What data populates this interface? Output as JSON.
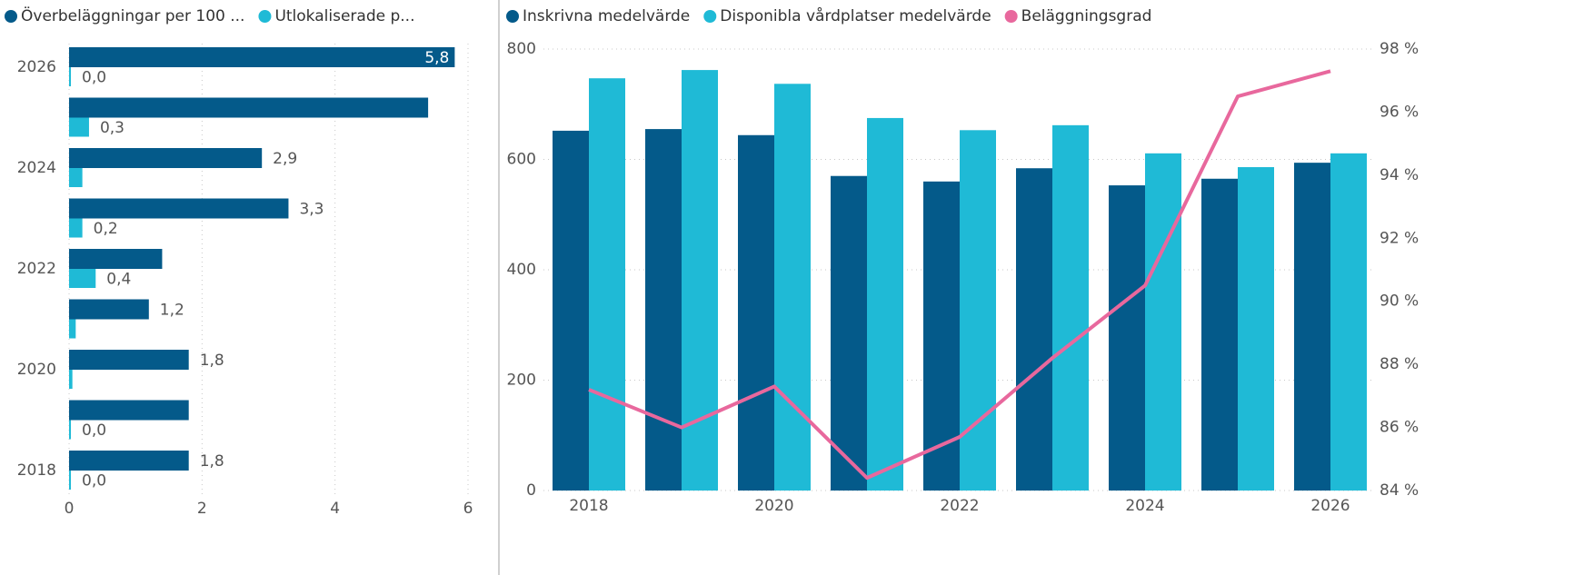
{
  "chart_data": [
    {
      "type": "bar",
      "orientation": "horizontal",
      "categories": [
        "2026",
        null,
        "2024",
        null,
        "2022",
        null,
        "2020",
        null,
        "2018"
      ],
      "series": [
        {
          "name": "Överbeläggningar per 100 ...",
          "color": "#045a8a",
          "values": [
            5.8,
            5.4,
            2.9,
            3.3,
            1.4,
            1.2,
            1.8,
            1.8,
            1.8
          ],
          "value_labels": [
            "5,8",
            null,
            "2,9",
            "3,3",
            null,
            "1,2",
            "1,8",
            null,
            "1,8"
          ]
        },
        {
          "name": "Utlokaliserade p...",
          "color": "#1fbad6",
          "values": [
            0.0,
            0.3,
            0.2,
            0.2,
            0.4,
            0.1,
            0.05,
            0.0,
            0.0
          ],
          "value_labels": [
            "0,0",
            "0,3",
            null,
            "0,2",
            "0,4",
            null,
            null,
            "0,0",
            "0,0"
          ]
        }
      ],
      "xlim": [
        0,
        6
      ],
      "xticks": [
        0,
        2,
        4,
        6
      ],
      "grid": true
    },
    {
      "type": "bar",
      "categories": [
        "2018",
        null,
        "2020",
        null,
        "2022",
        null,
        "2024",
        null,
        "2026"
      ],
      "series": [
        {
          "name": "Inskrivna medelvärde",
          "color": "#045a8a",
          "values": [
            652,
            655,
            644,
            570,
            560,
            584,
            553,
            565,
            594
          ]
        },
        {
          "name": "Disponibla vårdplatser medelvärde",
          "color": "#1fbad6",
          "values": [
            747,
            762,
            737,
            675,
            653,
            662,
            611,
            586,
            611
          ]
        },
        {
          "name": "Beläggningsgrad",
          "color": "#e8689d",
          "type": "line",
          "axis": "y2",
          "values": [
            87.2,
            86.0,
            87.3,
            84.4,
            85.7,
            88.2,
            90.5,
            96.5,
            97.3
          ]
        }
      ],
      "ylim": [
        0,
        800
      ],
      "yticks": [
        0,
        200,
        400,
        600,
        800
      ],
      "y2lim": [
        84,
        98
      ],
      "y2ticks": [
        {
          "value": 84,
          "label": "84 %"
        },
        {
          "value": 86,
          "label": "86 %"
        },
        {
          "value": 88,
          "label": "88 %"
        },
        {
          "value": 90,
          "label": "90 %"
        },
        {
          "value": 92,
          "label": "92 %"
        },
        {
          "value": 94,
          "label": "94 %"
        },
        {
          "value": 96,
          "label": "96 %"
        },
        {
          "value": 98,
          "label": "98 %"
        }
      ],
      "grid": true
    }
  ]
}
